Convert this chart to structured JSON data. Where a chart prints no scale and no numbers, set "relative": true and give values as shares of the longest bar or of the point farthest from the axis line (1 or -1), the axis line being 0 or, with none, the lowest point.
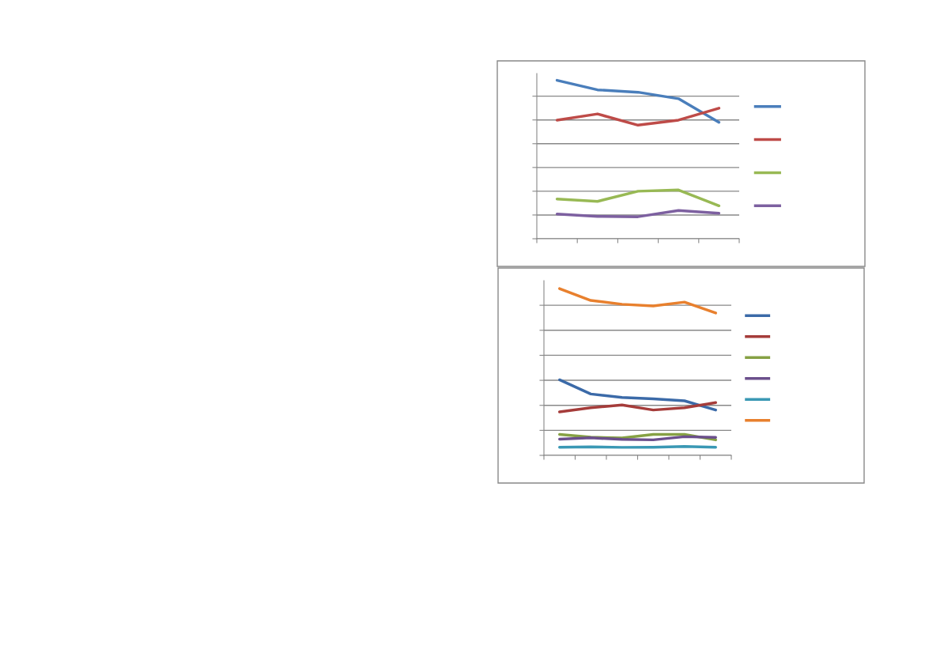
{
  "chart_data": [
    {
      "type": "line",
      "relative": true,
      "grid": "y",
      "categories": [
        null,
        null,
        null,
        null,
        null
      ],
      "series": [
        {
          "color": "#4a7ebb",
          "values": [
            1,
            0.94,
            0.925,
            0.884,
            0.735
          ]
        },
        {
          "color": "#be4b48",
          "values": [
            0.749,
            0.788,
            0.717,
            0.749,
            0.824
          ]
        },
        {
          "color": "#98b954",
          "values": [
            0.251,
            0.236,
            0.3,
            0.308,
            0.208
          ]
        },
        {
          "color": "#7d60a0",
          "values": [
            0.156,
            0.141,
            0.139,
            0.178,
            0.161
          ]
        }
      ]
    },
    {
      "type": "line",
      "relative": true,
      "grid": "y",
      "categories": [
        null,
        null,
        null,
        null,
        null,
        null
      ],
      "series": [
        {
          "color": "#3b6aa8",
          "values": [
            0.453,
            0.368,
            0.347,
            0.339,
            0.327,
            0.272
          ]
        },
        {
          "color": "#a53c3a",
          "values": [
            0.261,
            0.286,
            0.302,
            0.272,
            0.286,
            0.316
          ]
        },
        {
          "color": "#86a144",
          "values": [
            0.126,
            0.109,
            0.104,
            0.126,
            0.126,
            0.093
          ]
        },
        {
          "color": "#6b4f8c",
          "values": [
            0.097,
            0.105,
            0.096,
            0.093,
            0.112,
            0.108
          ]
        },
        {
          "color": "#3a98b4",
          "values": [
            0.049,
            0.051,
            0.048,
            0.049,
            0.053,
            0.049
          ]
        },
        {
          "color": "#e8802e",
          "values": [
            1,
            0.929,
            0.906,
            0.896,
            0.919,
            0.854
          ]
        }
      ]
    }
  ]
}
